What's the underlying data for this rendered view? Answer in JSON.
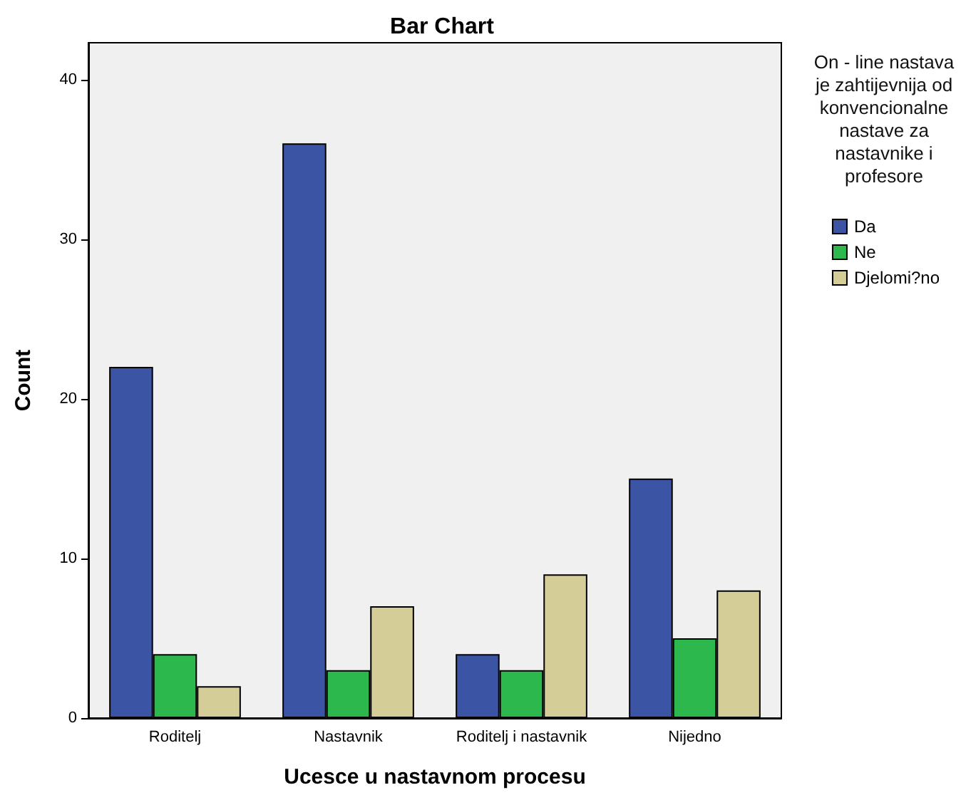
{
  "chart_data": {
    "type": "bar",
    "title": "Bar Chart",
    "xlabel": "Ucesce u nastavnom procesu",
    "ylabel": "Count",
    "legend_title": "On - line nastava je zahtijevnija od konvencionalne nastave za nastavnike i profesore",
    "categories": [
      "Roditelj",
      "Nastavnik",
      "Roditelj i nastavnik",
      "Nijedno"
    ],
    "series": [
      {
        "name": "Da",
        "color": "#3b54a4",
        "values": [
          22,
          36,
          4,
          15
        ]
      },
      {
        "name": "Ne",
        "color": "#2db84d",
        "values": [
          4,
          3,
          3,
          5
        ]
      },
      {
        "name": "Djelomi?no",
        "color": "#d5cd98",
        "values": [
          2,
          7,
          9,
          8
        ]
      }
    ],
    "ylim": [
      0,
      42.3
    ],
    "yticks": [
      0,
      10,
      20,
      30,
      40
    ],
    "grid": false,
    "legend": "right"
  }
}
